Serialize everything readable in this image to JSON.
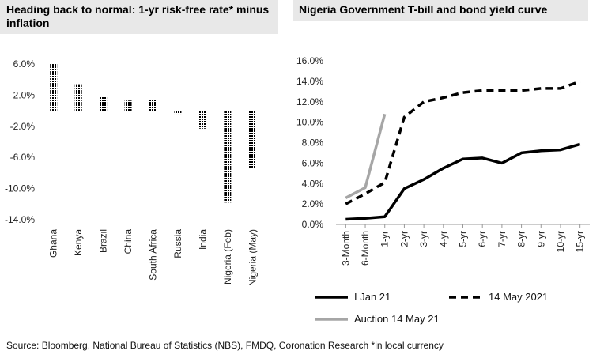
{
  "left_panel": {
    "title": "Heading back to normal: 1-yr risk-free rate* minus inflation"
  },
  "right_panel": {
    "title": "Nigeria Government T-bill and bond yield curve"
  },
  "source": "Source: Bloomberg, National Bureau of Statistics (NBS), FMDQ, Coronation Research *in local currency",
  "colors": {
    "bar_pattern": "#000000",
    "line_jan": "#000000",
    "line_may": "#000000",
    "line_auction": "#a6a6a6",
    "title_bg": "#e8e8e8"
  },
  "chart_data": [
    {
      "type": "bar",
      "title": "Heading back to normal: 1-yr risk-free rate* minus inflation",
      "categories": [
        "Ghana",
        "Kenya",
        "Brazil",
        "China",
        "South Africa",
        "Russia",
        "India",
        "Nigeria (Feb)",
        "Nigeria (May)"
      ],
      "values": [
        6.0,
        3.4,
        1.8,
        1.3,
        1.4,
        -0.4,
        -2.3,
        -11.8,
        -7.4
      ],
      "ylim": [
        -14,
        6
      ],
      "yticks": [
        6,
        2,
        -2,
        -6,
        -10,
        -14
      ],
      "ytick_labels": [
        "6.0%",
        "2.0%",
        "-2.0%",
        "-6.0%",
        "-10.0%",
        "-14.0%"
      ],
      "grid": false,
      "legend": "none"
    },
    {
      "type": "line",
      "title": "Nigeria Government T-bill and bond yield curve",
      "categories": [
        "3-Month",
        "6-Month",
        "1-yr",
        "2-yr",
        "3-yr",
        "4-yr",
        "5-yr",
        "6-yr",
        "7-yr",
        "8-yr",
        "9-yr",
        "10-yr",
        "15-yr"
      ],
      "ylim": [
        0,
        16
      ],
      "yticks": [
        0,
        2,
        4,
        6,
        8,
        10,
        12,
        14,
        16
      ],
      "ytick_labels": [
        "0.0%",
        "2.0%",
        "4.0%",
        "6.0%",
        "8.0%",
        "10.0%",
        "12.0%",
        "14.0%",
        "16.0%"
      ],
      "grid": false,
      "legend": "bottom",
      "series": [
        {
          "name": "I Jan 21",
          "style": "solid",
          "color": "#000000",
          "values": [
            0.5,
            0.6,
            0.75,
            3.5,
            4.4,
            5.5,
            6.4,
            6.5,
            6.0,
            7.0,
            7.2,
            7.3,
            7.85
          ]
        },
        {
          "name": "14 May 2021",
          "style": "dashed",
          "color": "#000000",
          "values": [
            2.0,
            3.0,
            4.1,
            10.5,
            12.0,
            12.4,
            12.9,
            13.1,
            13.1,
            13.1,
            13.3,
            13.3,
            14.0
          ]
        },
        {
          "name": "Auction 14 May 21",
          "style": "solid",
          "color": "#a6a6a6",
          "values": [
            2.6,
            3.6,
            10.8,
            null,
            null,
            null,
            null,
            null,
            null,
            null,
            null,
            null,
            null
          ]
        }
      ]
    }
  ]
}
